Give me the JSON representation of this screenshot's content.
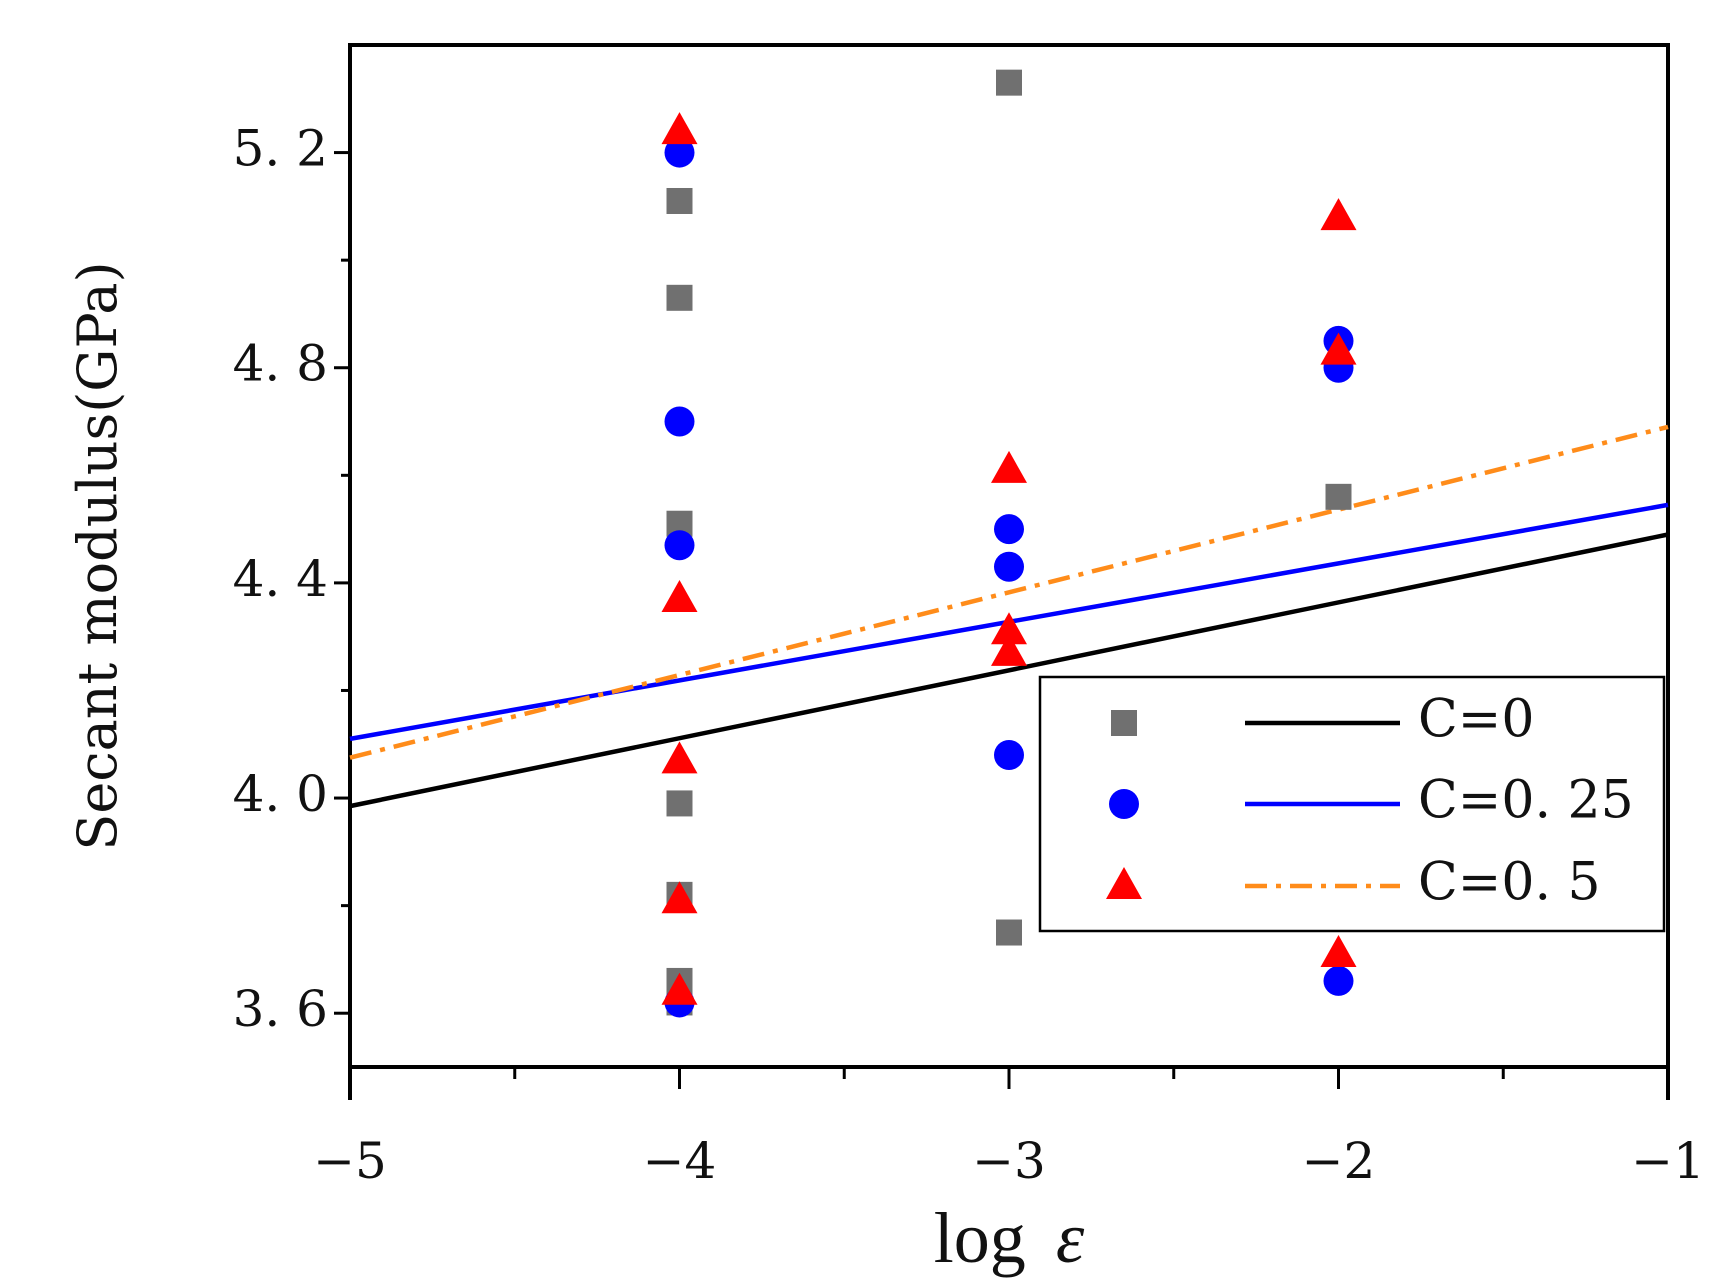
{
  "chart_data": {
    "type": "scatter",
    "title": "",
    "xlabel_main": "log",
    "xlabel_symbol": "ε",
    "ylabel": "Secant modulus(GPa)",
    "xlim": [
      -5,
      -1
    ],
    "ylim": [
      3.5,
      5.4
    ],
    "xticks": [
      -5,
      -4,
      -3,
      -2,
      -1
    ],
    "xtick_labels": [
      "−5",
      "−4",
      "−3",
      "−2",
      "−1"
    ],
    "yticks": [
      3.6,
      4.0,
      4.4,
      4.8,
      5.2
    ],
    "ytick_labels": [
      "3. 6",
      "4. 0",
      "4. 4",
      "4. 8",
      "5. 2"
    ],
    "legend_position": "right",
    "series": [
      {
        "name": "C=0",
        "marker": "square",
        "marker_color": "#707070",
        "line_color": "#000000",
        "line_style": "solid",
        "points": [
          {
            "x": -4,
            "y": 5.11
          },
          {
            "x": -4,
            "y": 4.93
          },
          {
            "x": -4,
            "y": 4.51
          },
          {
            "x": -4,
            "y": 3.99
          },
          {
            "x": -4,
            "y": 3.82
          },
          {
            "x": -4,
            "y": 3.66
          },
          {
            "x": -4,
            "y": 3.62
          },
          {
            "x": -3,
            "y": 5.33
          },
          {
            "x": -3,
            "y": 3.75
          },
          {
            "x": -2,
            "y": 4.56
          }
        ],
        "fit": {
          "x": [
            -5,
            -1
          ],
          "y": [
            3.985,
            4.49
          ]
        }
      },
      {
        "name": "C=0. 25",
        "marker": "circle",
        "marker_color": "#0000ff",
        "line_color": "#0000ff",
        "line_style": "solid",
        "points": [
          {
            "x": -4,
            "y": 5.2
          },
          {
            "x": -4,
            "y": 4.7
          },
          {
            "x": -4,
            "y": 4.47
          },
          {
            "x": -4,
            "y": 3.62
          },
          {
            "x": -3,
            "y": 4.5
          },
          {
            "x": -3,
            "y": 4.43
          },
          {
            "x": -3,
            "y": 4.08
          },
          {
            "x": -2,
            "y": 4.85
          },
          {
            "x": -2,
            "y": 4.8
          },
          {
            "x": -2,
            "y": 3.66
          }
        ],
        "fit": {
          "x": [
            -5,
            -1
          ],
          "y": [
            4.11,
            4.545
          ]
        }
      },
      {
        "name": "C=0. 5",
        "marker": "triangle",
        "marker_color": "#ff0000",
        "line_color": "#ff8c1a",
        "line_style": "dashdot",
        "points": [
          {
            "x": -4,
            "y": 5.24
          },
          {
            "x": -4,
            "y": 4.37
          },
          {
            "x": -4,
            "y": 4.07
          },
          {
            "x": -4,
            "y": 3.81
          },
          {
            "x": -4,
            "y": 3.64
          },
          {
            "x": -3,
            "y": 4.61
          },
          {
            "x": -3,
            "y": 4.31
          },
          {
            "x": -3,
            "y": 4.27
          },
          {
            "x": -2,
            "y": 5.08
          },
          {
            "x": -2,
            "y": 4.83
          },
          {
            "x": -2,
            "y": 3.71
          }
        ],
        "fit": {
          "x": [
            -5,
            -1
          ],
          "y": [
            4.075,
            4.69
          ]
        }
      }
    ]
  }
}
